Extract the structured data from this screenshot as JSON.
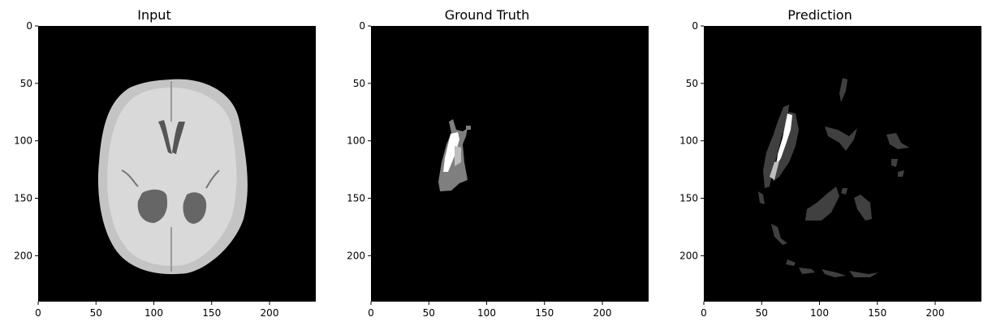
{
  "panels": [
    {
      "id": "input",
      "title": "Input"
    },
    {
      "id": "ground-truth",
      "title": "Ground Truth"
    },
    {
      "id": "prediction",
      "title": "Prediction"
    }
  ],
  "axes": {
    "x_ticks": [
      0,
      50,
      100,
      150,
      200
    ],
    "y_ticks": [
      0,
      50,
      100,
      150,
      200
    ],
    "x_range": [
      0,
      240
    ],
    "y_range": [
      0,
      240
    ],
    "background_color": "#000000"
  }
}
